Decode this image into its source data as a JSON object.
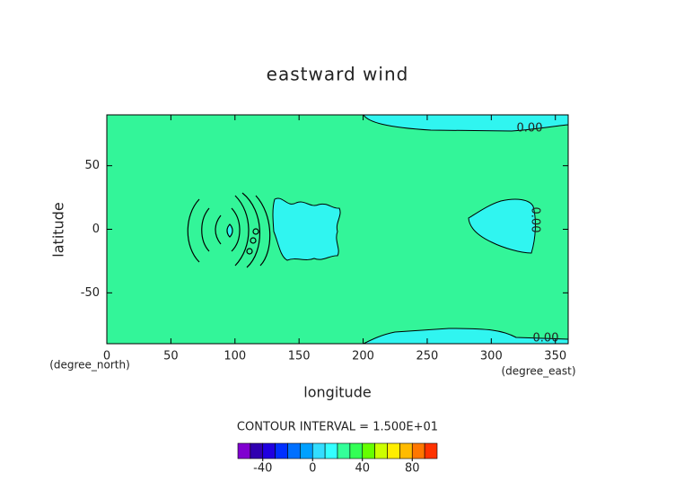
{
  "chart_data": {
    "type": "contour",
    "title": "eastward wind",
    "xlabel": "longitude",
    "ylabel": "latitude",
    "xunit": "(degree_east)",
    "yunit": "(degree_north)",
    "xlim": [
      0,
      360
    ],
    "xticks": [
      0,
      50,
      100,
      150,
      200,
      250,
      300,
      350
    ],
    "ylim": [
      -90,
      90
    ],
    "yticks": [
      -50,
      0,
      50
    ],
    "contour_labels": [
      {
        "value": 0,
        "label": "0.00"
      },
      {
        "value": 0,
        "label": "0.00"
      },
      {
        "value": 0,
        "label": "0.00"
      }
    ],
    "interval_text": "CONTOUR INTERVAL = 1.500E+01",
    "colorbar": {
      "lim": [
        -60,
        100
      ],
      "ticks": [
        -40,
        0,
        40,
        80
      ],
      "colors": [
        "#8000d0",
        "#3000b0",
        "#2000e0",
        "#0030ff",
        "#0070ff",
        "#00a0ff",
        "#33ddff",
        "#33ffff",
        "#33ff99",
        "#33ff55",
        "#66ff00",
        "#ccff00",
        "#ffee00",
        "#ffbb00",
        "#ff7700",
        "#ff3300"
      ]
    }
  }
}
